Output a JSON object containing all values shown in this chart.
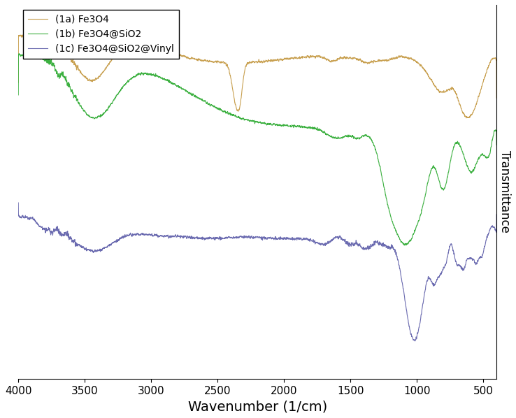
{
  "xlabel": "Wavenumber (1/cm)",
  "ylabel": "Transmittance",
  "xlim": [
    4000,
    400
  ],
  "legend_labels": [
    "(1a) Fe3O4",
    "(1b) Fe3O4@SiO2",
    "(1c) Fe3O4@SiO2@Vinyl"
  ],
  "colors": [
    "#C8A050",
    "#3CB040",
    "#6B6BB0"
  ],
  "background_color": "#FFFFFF",
  "xlabel_fontsize": 14,
  "ylabel_fontsize": 12,
  "legend_fontsize": 10,
  "tick_fontsize": 11
}
